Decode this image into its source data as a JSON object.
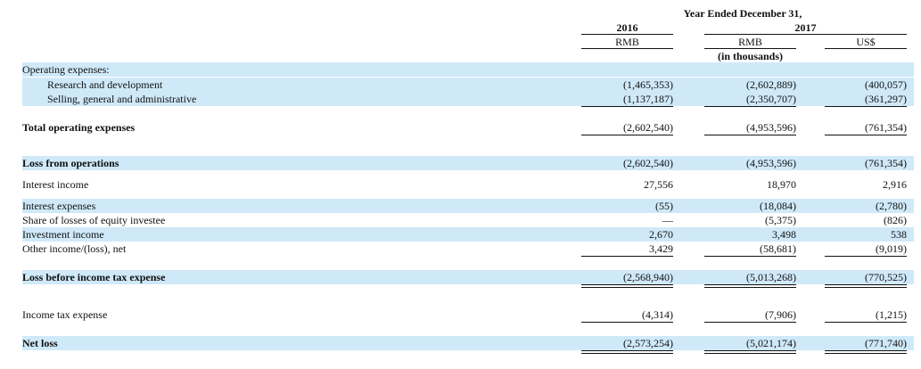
{
  "header": {
    "period": "Year Ended December 31,",
    "years": [
      "2016",
      "2017"
    ],
    "currencies": [
      "RMB",
      "RMB",
      "US$"
    ],
    "unit": "(in thousands)"
  },
  "table": {
    "rows": [
      {
        "label": "Operating expenses:",
        "values": []
      },
      {
        "label": "Research and development",
        "values": [
          "(1,465,353)",
          "(2,602,889)",
          "(400,057)"
        ]
      },
      {
        "label": "Selling, general and administrative",
        "values": [
          "(1,137,187)",
          "(2,350,707)",
          "(361,297)"
        ]
      },
      {
        "label": "Total operating expenses",
        "values": [
          "(2,602,540)",
          "(4,953,596)",
          "(761,354)"
        ]
      },
      {
        "label": "Loss from operations",
        "values": [
          "(2,602,540)",
          "(4,953,596)",
          "(761,354)"
        ]
      },
      {
        "label": "Interest income",
        "values": [
          "27,556",
          "18,970",
          "2,916"
        ]
      },
      {
        "label": "Interest expenses",
        "values": [
          "(55)",
          "(18,084)",
          "(2,780)"
        ]
      },
      {
        "label": "Share of losses of equity investee",
        "values": [
          "—",
          "(5,375)",
          "(826)"
        ]
      },
      {
        "label": "Investment income",
        "values": [
          "2,670",
          "3,498",
          "538"
        ]
      },
      {
        "label": "Other income/(loss), net",
        "values": [
          "3,429",
          "(58,681)",
          "(9,019)"
        ]
      },
      {
        "label": "Loss before income tax expense",
        "values": [
          "(2,568,940)",
          "(5,013,268)",
          "(770,525)"
        ]
      },
      {
        "label": "Income tax expense",
        "values": [
          "(4,314)",
          "(7,906)",
          "(1,215)"
        ]
      },
      {
        "label": "Net loss",
        "values": [
          "(2,573,254)",
          "(5,021,174)",
          "(771,740)"
        ]
      }
    ]
  }
}
